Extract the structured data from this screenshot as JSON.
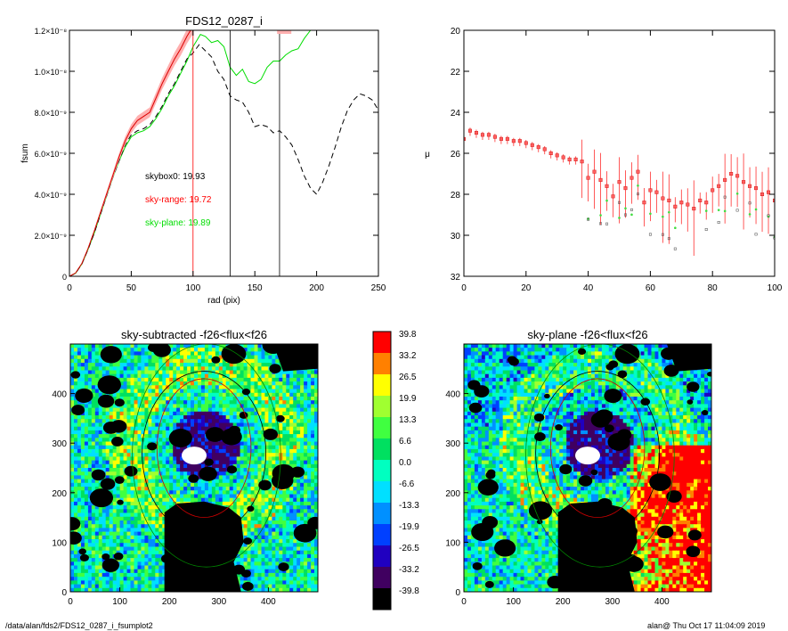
{
  "chart_data": [
    {
      "type": "line",
      "title": "FDS12_0287_i",
      "xlabel": "rad (pix)",
      "ylabel": "fsum",
      "xlim": [
        0,
        250
      ],
      "ylim": [
        0,
        1.2e-08
      ],
      "x_ticks": [
        "0",
        "50",
        "100",
        "150",
        "200",
        "250"
      ],
      "y_ticks": [
        "0",
        "2.0×10⁻⁹",
        "4.0×10⁻⁹",
        "6.0×10⁻⁹",
        "8.0×10⁻⁹",
        "1.0×10⁻⁸",
        "1.2×10⁻⁸"
      ],
      "annotations": [
        {
          "text": "skybox0: 19.93",
          "color": "#000000"
        },
        {
          "text": "sky-range: 19.72",
          "color": "#ff0000"
        },
        {
          "text": "sky-plane: 19.89",
          "color": "#00dd00"
        }
      ],
      "vlines": [
        {
          "x": 100,
          "color": "#ff0000"
        },
        {
          "x": 130,
          "color": "#000000"
        },
        {
          "x": 170,
          "color": "#000000"
        }
      ],
      "series": [
        {
          "color": "#00dd00",
          "style": "solid",
          "x": [
            0,
            5,
            10,
            15,
            20,
            25,
            30,
            35,
            40,
            45,
            50,
            55,
            60,
            65,
            70,
            75,
            80,
            85,
            90,
            95,
            100,
            103,
            106,
            110,
            115,
            120,
            125,
            130,
            135,
            140,
            145,
            150,
            155,
            160,
            165,
            170,
            175,
            180,
            185,
            190,
            195,
            200,
            205
          ],
          "y": [
            0,
            1.5e-10,
            6e-10,
            1.3e-09,
            2.1e-09,
            3e-09,
            3.9e-09,
            4.8e-09,
            5.6e-09,
            6.3e-09,
            6.8e-09,
            7e-09,
            7.1e-09,
            7.3e-09,
            7.7e-09,
            8.2e-09,
            8.8e-09,
            9.3e-09,
            9.9e-09,
            1.05e-08,
            1.12e-08,
            1.15e-08,
            1.18e-08,
            1.17e-08,
            1.14e-08,
            1.15e-08,
            1.12e-08,
            1.02e-08,
            9.8e-09,
            1.01e-08,
            9.5e-09,
            9.4e-09,
            9.6e-09,
            1.02e-08,
            1.05e-08,
            1.05e-08,
            1.08e-08,
            1.1e-08,
            1.11e-08,
            1.16e-08,
            1.2e-08,
            1.21e-08,
            1.22e-08
          ]
        },
        {
          "color": "#000000",
          "style": "dashed",
          "x": [
            0,
            5,
            10,
            15,
            20,
            25,
            30,
            35,
            40,
            45,
            50,
            55,
            60,
            65,
            70,
            75,
            80,
            85,
            90,
            95,
            100,
            105,
            110,
            115,
            120,
            125,
            130,
            135,
            140,
            145,
            150,
            155,
            160,
            165,
            170,
            175,
            180,
            185,
            190,
            195,
            200,
            205,
            210,
            215,
            220,
            225,
            230,
            235,
            240,
            245,
            250
          ],
          "y": [
            0,
            1.5e-10,
            6e-10,
            1.3e-09,
            2.1e-09,
            3e-09,
            3.9e-09,
            4.8e-09,
            5.6e-09,
            6.4e-09,
            6.9e-09,
            7.1e-09,
            7.2e-09,
            7.4e-09,
            7.8e-09,
            8.3e-09,
            8.9e-09,
            9.4e-09,
            1e-08,
            1.06e-08,
            1.09e-08,
            1.13e-08,
            1.1e-08,
            1.07e-08,
            1e-08,
            9.6e-09,
            8.8e-09,
            8.6e-09,
            8.5e-09,
            8e-09,
            7.3e-09,
            7.4e-09,
            7.3e-09,
            7e-09,
            7.1e-09,
            6.8e-09,
            6.4e-09,
            5.7e-09,
            4.9e-09,
            4.3e-09,
            4e-09,
            4.6e-09,
            5.4e-09,
            6.3e-09,
            7.3e-09,
            8.1e-09,
            8.6e-09,
            8.9e-09,
            8.8e-09,
            8.6e-09,
            8.1e-09
          ]
        },
        {
          "color": "#dd0000",
          "style": "solid",
          "band": true,
          "x": [
            0,
            5,
            10,
            15,
            20,
            25,
            30,
            35,
            40,
            45,
            50,
            55,
            60,
            65,
            70,
            75,
            80,
            85,
            90,
            95,
            100
          ],
          "y": [
            0,
            1.6e-10,
            6.2e-10,
            1.35e-09,
            2.2e-09,
            3.1e-09,
            4e-09,
            4.9e-09,
            5.8e-09,
            6.6e-09,
            7.2e-09,
            7.6e-09,
            7.8e-09,
            8e-09,
            8.7e-09,
            9.4e-09,
            1e-08,
            1.06e-08,
            1.11e-08,
            1.17e-08,
            1.22e-08
          ]
        }
      ]
    },
    {
      "type": "scatter",
      "title": "",
      "xlabel": "",
      "ylabel": "μ",
      "xlim": [
        0,
        100
      ],
      "ylim": [
        32,
        20
      ],
      "x_ticks": [
        "0",
        "20",
        "40",
        "60",
        "80",
        "100"
      ],
      "y_ticks": [
        "20",
        "22",
        "24",
        "26",
        "28",
        "30",
        "32"
      ],
      "points": {
        "x": [
          0,
          2,
          4,
          6,
          8,
          10,
          12,
          14,
          16,
          18,
          20,
          22,
          24,
          26,
          28,
          30,
          32,
          34,
          36,
          38,
          40,
          42,
          44,
          46,
          48,
          50,
          52,
          54,
          56,
          58,
          60,
          62,
          64,
          66,
          68,
          70,
          72,
          74,
          76,
          78,
          80,
          82,
          84,
          86,
          88,
          90,
          92,
          94,
          96,
          98,
          100
        ],
        "y": [
          25.3,
          24.9,
          25.0,
          25.1,
          25.1,
          25.2,
          25.3,
          25.3,
          25.4,
          25.4,
          25.5,
          25.6,
          25.7,
          25.8,
          26.0,
          26.1,
          26.2,
          26.3,
          26.3,
          26.4,
          27.2,
          26.9,
          27.3,
          27.6,
          28.1,
          27.4,
          27.7,
          27.2,
          26.9,
          28.4,
          27.8,
          27.9,
          28.2,
          28.3,
          28.6,
          28.4,
          28.5,
          28.7,
          28.3,
          28.4,
          27.8,
          27.6,
          27.3,
          27.0,
          27.1,
          27.4,
          27.6,
          27.7,
          28.0,
          27.9,
          28.3
        ]
      }
    },
    {
      "type": "heatmap",
      "title": "sky-subtracted -f26<flux<f26",
      "xlim": [
        0,
        500
      ],
      "ylim": [
        0,
        500
      ],
      "x_ticks": [
        "0",
        "100",
        "200",
        "300",
        "400"
      ],
      "y_ticks": [
        "0",
        "100",
        "200",
        "300",
        "400"
      ]
    },
    {
      "type": "heatmap",
      "title": "sky-plane -f26<flux<f26",
      "xlim": [
        0,
        500
      ],
      "ylim": [
        0,
        500
      ],
      "x_ticks": [
        "0",
        "100",
        "200",
        "300",
        "400"
      ],
      "y_ticks": [
        "0",
        "100",
        "200",
        "300",
        "400"
      ]
    }
  ],
  "colorbar": {
    "labels": [
      "39.8",
      "33.2",
      "26.5",
      "19.9",
      "13.3",
      "6.6",
      "0.0",
      "-6.6",
      "-13.3",
      "-19.9",
      "-26.5",
      "-33.2",
      "-39.8"
    ],
    "colors": [
      "#ff0000",
      "#ff8000",
      "#ffff00",
      "#a0ff30",
      "#40ff40",
      "#00e060",
      "#00ffc0",
      "#00e0ff",
      "#0090ff",
      "#0040ff",
      "#2000c0",
      "#400060",
      "#000000"
    ]
  },
  "footer": {
    "left": "/data/alan/fds2/FDS12_0287_i_fsumplot2",
    "right": "alan@  Thu Oct 17 11:04:09 2019"
  }
}
